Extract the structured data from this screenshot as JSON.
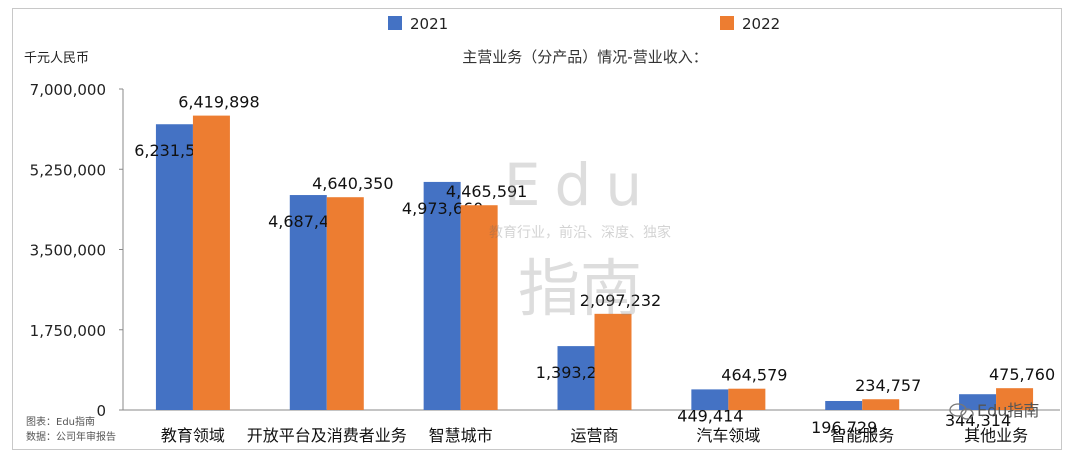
{
  "chart_data": {
    "type": "bar",
    "title": "主营业务（分产品）情况-营业收入：",
    "ylabel": "千元人民币",
    "xlabel": "",
    "categories": [
      "教育领域",
      "开放平台及消费者业务",
      "智慧城市",
      "运营商",
      "汽车领域",
      "智能服务",
      "其他业务"
    ],
    "series": [
      {
        "name": "2021",
        "color": "#4472c4",
        "values": [
          6231566,
          4687403,
          4973660,
          1393232,
          449414,
          196729,
          344314
        ]
      },
      {
        "name": "2022",
        "color": "#ed7d31",
        "values": [
          6419898,
          4640350,
          4465591,
          2097232,
          464579,
          234757,
          475760
        ]
      }
    ],
    "value_labels": [
      [
        "6,231,566",
        "4,687,403",
        "4,973,660",
        "1,393,232",
        "449,414",
        "196,729",
        "344,314"
      ],
      [
        "6,419,898",
        "4,640,350",
        "4,465,591",
        "2,097,232",
        "464,579",
        "234,757",
        "475,760"
      ]
    ],
    "ylim": [
      0,
      7000000
    ],
    "yticks": [
      0,
      1750000,
      3500000,
      5250000,
      7000000
    ],
    "ytick_labels": [
      "0",
      "1,750,000",
      "3,500,000",
      "5,250,000",
      "7,000,000"
    ],
    "grid": false,
    "legend_position": "top-center"
  },
  "source": {
    "chart_credit": "图表：Edu指南",
    "data_credit": "数据：公司年审报告"
  },
  "watermark": {
    "logo_text": "Edu",
    "logo_cn": "指南",
    "tagline": "教育行业，前沿、深度、独家",
    "wechat_label": "Edu指南"
  }
}
